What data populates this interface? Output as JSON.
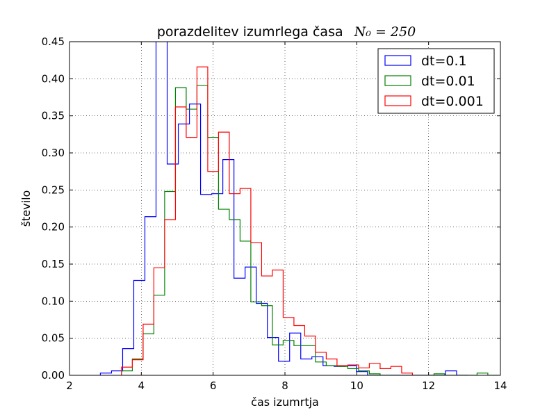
{
  "chart_data": {
    "type": "histogram-step",
    "title": "porazdelitev izumrlega časa",
    "title_math": "N₀ = 250",
    "xlabel": "čas izumrtja",
    "ylabel": "število",
    "xlim": [
      2,
      14
    ],
    "ylim": [
      0,
      0.45
    ],
    "xticks": [
      2,
      4,
      6,
      8,
      10,
      12,
      14
    ],
    "xtick_labels": [
      "2",
      "4",
      "6",
      "8",
      "10",
      "12",
      "14"
    ],
    "yticks": [
      0.0,
      0.05,
      0.1,
      0.15,
      0.2,
      0.25,
      0.3,
      0.35,
      0.4,
      0.45
    ],
    "ytick_labels": [
      "0.00",
      "0.05",
      "0.10",
      "0.15",
      "0.20",
      "0.25",
      "0.30",
      "0.35",
      "0.40",
      "0.45"
    ],
    "grid": true,
    "legend_position": "top-right",
    "series": [
      {
        "name": "dt=0.1",
        "color": "#0000ff",
        "edges": [
          2.86,
          3.17,
          3.48,
          3.79,
          4.1,
          4.41,
          4.72,
          5.03,
          5.34,
          5.65,
          5.96,
          6.27,
          6.58,
          6.89,
          7.2,
          7.51,
          7.82,
          8.13,
          8.44,
          8.75,
          9.06,
          9.37,
          9.68,
          9.99,
          10.3,
          10.61,
          10.92,
          11.23,
          11.54,
          11.85,
          12.16,
          12.47,
          12.78,
          13.09
        ],
        "values": [
          0.003,
          0.006,
          0.036,
          0.128,
          0.214,
          0.46,
          0.285,
          0.339,
          0.366,
          0.244,
          0.245,
          0.291,
          0.131,
          0.146,
          0.097,
          0.051,
          0.019,
          0.057,
          0.022,
          0.025,
          0.013,
          0.012,
          0.013,
          0.005,
          0.0,
          0.0,
          0.0,
          0.0,
          0.0,
          0.0,
          0.0,
          0.006,
          0.0
        ]
      },
      {
        "name": "dt=0.01",
        "color": "#008000",
        "edges": [
          3.45,
          3.75,
          4.05,
          4.35,
          4.65,
          4.95,
          5.25,
          5.55,
          5.85,
          6.15,
          6.45,
          6.75,
          7.05,
          7.35,
          7.65,
          7.95,
          8.25,
          8.55,
          8.85,
          9.15,
          9.45,
          9.75,
          10.05,
          10.35,
          10.65,
          10.95,
          11.25,
          11.55,
          11.85,
          12.15,
          12.45,
          12.75,
          13.05,
          13.35,
          13.65,
          13.95
        ],
        "values": [
          0.006,
          0.022,
          0.056,
          0.108,
          0.248,
          0.388,
          0.359,
          0.391,
          0.321,
          0.224,
          0.21,
          0.181,
          0.099,
          0.094,
          0.041,
          0.047,
          0.04,
          0.04,
          0.018,
          0.013,
          0.012,
          0.009,
          0.006,
          0.002,
          0.0,
          0.0,
          0.0,
          0.0,
          0.0,
          0.002,
          0.0,
          0.0,
          0.0,
          0.003,
          0.0
        ]
      },
      {
        "name": "dt=0.001",
        "color": "#ff0000",
        "edges": [
          3.45,
          3.75,
          4.05,
          4.35,
          4.65,
          4.95,
          5.25,
          5.55,
          5.85,
          6.15,
          6.45,
          6.75,
          7.05,
          7.35,
          7.65,
          7.95,
          8.25,
          8.55,
          8.85,
          9.15,
          9.45,
          9.75,
          10.05,
          10.35,
          10.65,
          10.95,
          11.25,
          11.55
        ],
        "values": [
          0.011,
          0.021,
          0.069,
          0.145,
          0.21,
          0.362,
          0.321,
          0.416,
          0.275,
          0.328,
          0.245,
          0.252,
          0.179,
          0.134,
          0.142,
          0.078,
          0.067,
          0.053,
          0.031,
          0.022,
          0.013,
          0.014,
          0.01,
          0.016,
          0.009,
          0.012,
          0.003
        ]
      }
    ]
  }
}
